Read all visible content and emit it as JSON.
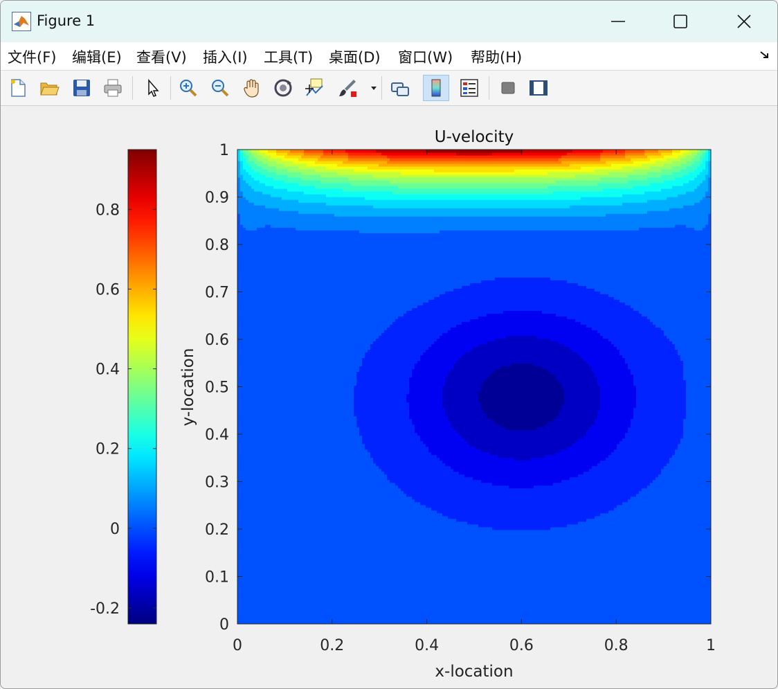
{
  "window": {
    "title": "Figure 1"
  },
  "menu": {
    "items": [
      "文件(F)",
      "编辑(E)",
      "查看(V)",
      "插入(I)",
      "工具(T)",
      "桌面(D)",
      "窗口(W)",
      "帮助(H)"
    ]
  },
  "toolbar": {
    "tools": [
      {
        "name": "new-figure-icon"
      },
      {
        "name": "open-file-icon"
      },
      {
        "name": "save-icon"
      },
      {
        "name": "print-icon"
      },
      {
        "name": "select-pointer-icon"
      },
      {
        "name": "zoom-in-icon"
      },
      {
        "name": "zoom-out-icon"
      },
      {
        "name": "pan-hand-icon"
      },
      {
        "name": "rotate-3d-icon"
      },
      {
        "name": "data-cursor-icon"
      },
      {
        "name": "brush-icon"
      },
      {
        "name": "link-plot-icon"
      },
      {
        "name": "insert-colorbar-icon"
      },
      {
        "name": "insert-legend-icon"
      },
      {
        "name": "hide-plot-tools-icon"
      },
      {
        "name": "show-plot-tools-icon"
      }
    ],
    "active_tool": "insert-colorbar-icon"
  },
  "chart_data": {
    "type": "heatmap",
    "title": "U-velocity",
    "xlabel": "x-location",
    "ylabel": "y-location",
    "xlim": [
      0,
      1
    ],
    "ylim": [
      0,
      1
    ],
    "xticks": [
      "0",
      "0.2",
      "0.4",
      "0.6",
      "0.8",
      "1"
    ],
    "yticks": [
      "0",
      "0.1",
      "0.2",
      "0.3",
      "0.4",
      "0.5",
      "0.6",
      "0.7",
      "0.8",
      "0.9",
      "1"
    ],
    "colorbar": {
      "colormap": "jet",
      "range": [
        -0.24,
        0.95
      ],
      "ticks": [
        "-0.2",
        "0",
        "0.2",
        "0.4",
        "0.6",
        "0.8"
      ],
      "tick_values": [
        -0.2,
        0,
        0.2,
        0.4,
        0.6,
        0.8
      ],
      "placement": "left"
    },
    "field_description": "lid-driven cavity U-velocity: maximum ~0.95 at lid (y=1), minimum ~-0.22 near (0.6, 0.5)",
    "grid": false
  }
}
